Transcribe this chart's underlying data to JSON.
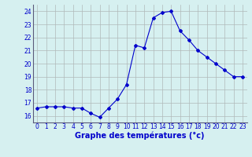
{
  "x": [
    0,
    1,
    2,
    3,
    4,
    5,
    6,
    7,
    8,
    9,
    10,
    11,
    12,
    13,
    14,
    15,
    16,
    17,
    18,
    19,
    20,
    21,
    22,
    23
  ],
  "y": [
    16.6,
    16.7,
    16.7,
    16.7,
    16.6,
    16.6,
    16.2,
    15.9,
    16.6,
    17.3,
    18.4,
    21.4,
    21.2,
    23.5,
    23.9,
    24.0,
    22.5,
    21.8,
    21.0,
    20.5,
    20.0,
    19.5,
    19.0,
    19.0
  ],
  "line_color": "#0000cc",
  "marker": "D",
  "marker_size": 2.0,
  "bg_color": "#d6f0f0",
  "grid_color": "#b0b8b8",
  "xlabel": "Graphe des températures (°c)",
  "xlabel_color": "#0000cc",
  "xlabel_fontsize": 7,
  "tick_color": "#0000cc",
  "tick_fontsize": 5.5,
  "ylim": [
    15.5,
    24.5
  ],
  "yticks": [
    16,
    17,
    18,
    19,
    20,
    21,
    22,
    23,
    24
  ],
  "xlim": [
    -0.5,
    23.5
  ],
  "xticks": [
    0,
    1,
    2,
    3,
    4,
    5,
    6,
    7,
    8,
    9,
    10,
    11,
    12,
    13,
    14,
    15,
    16,
    17,
    18,
    19,
    20,
    21,
    22,
    23
  ]
}
